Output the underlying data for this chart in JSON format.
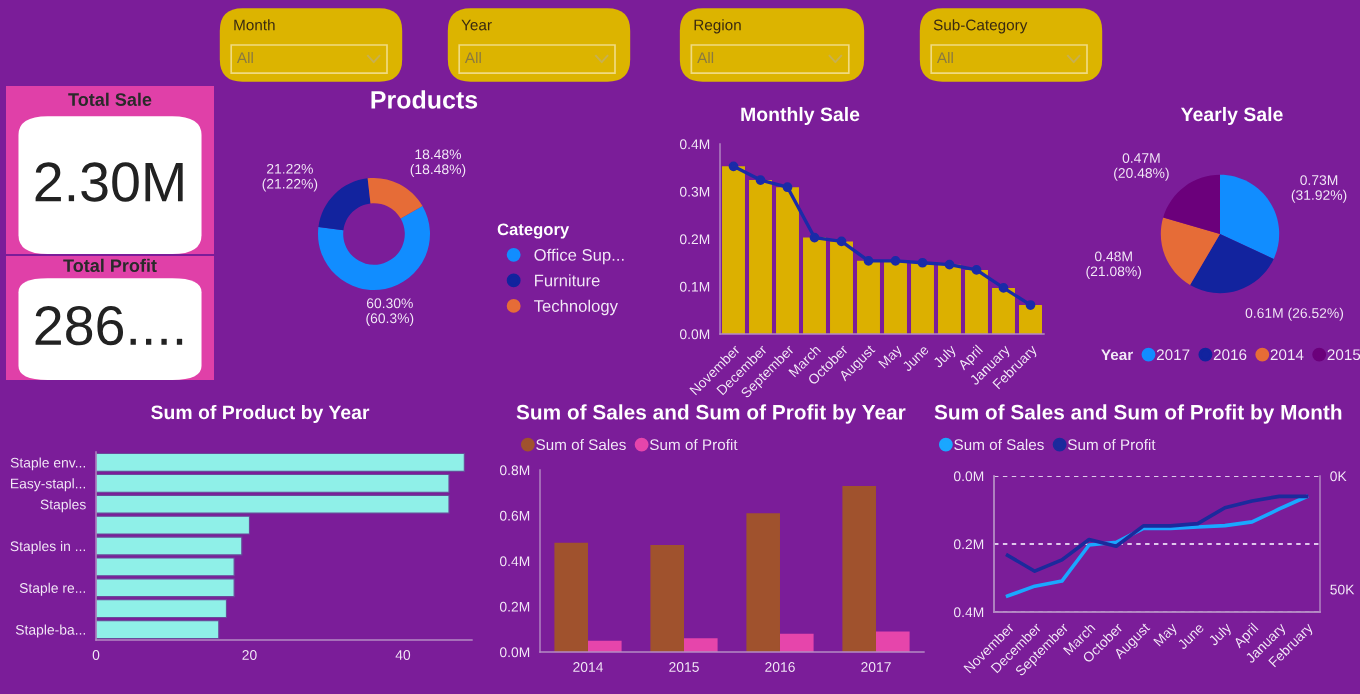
{
  "chart_data": [
    {
      "type": "other",
      "title": "Month",
      "annotations": [
        "All"
      ]
    },
    {
      "type": "other",
      "title": "Year",
      "annotations": [
        "All"
      ]
    },
    {
      "type": "other",
      "title": "Region",
      "annotations": [
        "All"
      ]
    },
    {
      "type": "other",
      "title": "Sub-Category",
      "annotations": [
        "All"
      ]
    },
    {
      "type": "other",
      "title": "Total Sale",
      "annotations": [
        "2.30M"
      ]
    },
    {
      "type": "other",
      "title": "Total Profit",
      "annotations": [
        "286...."
      ]
    },
    {
      "type": "donut",
      "title": "Products",
      "categories": [
        "Office Sup...",
        "Furniture",
        "Technology"
      ],
      "values": [
        60.3,
        21.22,
        18.48
      ],
      "colors": [
        "#118dff",
        "#12239e",
        "#e66c37"
      ],
      "value_labels": [
        "60.30%\n(60.3%)",
        "21.22%\n(21.22%)",
        "18.48%\n(18.48%)"
      ],
      "legend_title": "Category",
      "legend": "right"
    },
    {
      "type": "bar",
      "title": "Monthly Sale",
      "categories": [
        "November",
        "December",
        "September",
        "March",
        "October",
        "August",
        "May",
        "June",
        "July",
        "April",
        "January",
        "February"
      ],
      "series": [
        {
          "type": "bar",
          "color": "#dcb000",
          "values": [
            0.353,
            0.324,
            0.309,
            0.203,
            0.195,
            0.154,
            0.154,
            0.15,
            0.146,
            0.135,
            0.097,
            0.061
          ]
        },
        {
          "type": "line",
          "color": "#1a2ba8",
          "values": [
            0.353,
            0.324,
            0.309,
            0.203,
            0.195,
            0.154,
            0.154,
            0.15,
            0.146,
            0.135,
            0.097,
            0.061
          ]
        }
      ],
      "marker": "circle",
      "ylim": [
        0,
        0.4
      ],
      "yticks": [
        {
          "value": 0,
          "label": "0.0M"
        },
        {
          "value": 0.1,
          "label": "0.1M"
        },
        {
          "value": 0.2,
          "label": "0.2M"
        },
        {
          "value": 0.3,
          "label": "0.3M"
        },
        {
          "value": 0.4,
          "label": "0.4M"
        }
      ]
    },
    {
      "type": "pie",
      "title": "Yearly Sale",
      "categories": [
        "2017",
        "2016",
        "2014",
        "2015"
      ],
      "values": [
        31.92,
        26.52,
        21.08,
        20.48
      ],
      "colors": [
        "#118dff",
        "#12239e",
        "#e66c37",
        "#6b007b"
      ],
      "value_labels": [
        "0.73M\n(31.92%)",
        "0.61M (26.52%)",
        "0.48M\n(21.08%)",
        "0.47M\n(20.48%)"
      ],
      "legend_title": "Year",
      "legend": "bottom"
    },
    {
      "type": "bar",
      "orientation": "horizontal",
      "title": "Sum of Product by Year",
      "categories": [
        "Staple env...",
        "Easy-stapl...",
        "Staples",
        null,
        "Staples in ...",
        null,
        "Staple re...",
        null,
        "Staple-ba..."
      ],
      "values": [
        48,
        46,
        46,
        20,
        19,
        18,
        18,
        17,
        16
      ],
      "color": "#8ff0e8",
      "xlim": [
        0,
        49
      ],
      "xticks": [
        0,
        20,
        40
      ]
    },
    {
      "type": "bar",
      "title": "Sum of Sales and Sum of Profit by Year",
      "categories": [
        "2014",
        "2015",
        "2016",
        "2017"
      ],
      "series": [
        {
          "name": "Sum of Sales",
          "color": "#a0522d",
          "values": [
            0.48,
            0.47,
            0.61,
            0.73
          ]
        },
        {
          "name": "Sum of Profit",
          "color": "#e645ab",
          "values": [
            0.05,
            0.06,
            0.08,
            0.09
          ]
        }
      ],
      "legend": "top left",
      "ylim": [
        0,
        0.8
      ],
      "yticks": [
        {
          "value": 0,
          "label": "0.0M"
        },
        {
          "value": 0.2,
          "label": "0.2M"
        },
        {
          "value": 0.4,
          "label": "0.4M"
        },
        {
          "value": 0.6,
          "label": "0.6M"
        },
        {
          "value": 0.8,
          "label": "0.8M"
        }
      ]
    },
    {
      "type": "line",
      "title": "Sum of Sales and Sum of Profit by Month",
      "categories": [
        "November",
        "December",
        "September",
        "March",
        "October",
        "August",
        "May",
        "June",
        "July",
        "April",
        "January",
        "February"
      ],
      "series": [
        {
          "name": "Sum of Sales",
          "color": "#1aa7ff",
          "values": [
            0.353,
            0.324,
            0.309,
            0.203,
            0.195,
            0.154,
            0.154,
            0.15,
            0.146,
            0.135,
            0.097,
            0.061
          ]
        },
        {
          "name": "Sum of Profit",
          "color": "#1b2a9c",
          "axis": "y2",
          "values": [
            35000,
            42000,
            37000,
            28000,
            31000,
            22000,
            22000,
            21000,
            14000,
            11000,
            9000,
            9000
          ]
        }
      ],
      "legend": "top left",
      "grid": "y",
      "ylim": [
        0.4,
        0
      ],
      "yticks": [
        {
          "value": 0,
          "label": "0.0M"
        },
        {
          "value": 0.2,
          "label": "0.2M"
        },
        {
          "value": 0.4,
          "label": "0.4M"
        }
      ],
      "y2lim": [
        60000,
        0
      ],
      "y2ticks": [
        {
          "value": 0,
          "label": "0K"
        },
        {
          "value": 50000,
          "label": "50K"
        }
      ]
    }
  ]
}
